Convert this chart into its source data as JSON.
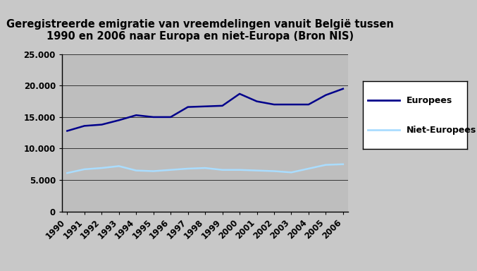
{
  "title": "Geregistreerde emigratie van vreemdelingen vanuit België tussen\n1990 en 2006 naar Europa en niet-Europa (Bron NIS)",
  "years": [
    1990,
    1991,
    1992,
    1993,
    1994,
    1995,
    1996,
    1997,
    1998,
    1999,
    2000,
    2001,
    2002,
    2003,
    2004,
    2005,
    2006
  ],
  "europees": [
    12800,
    13600,
    13800,
    14500,
    15300,
    15000,
    15000,
    16600,
    16700,
    16800,
    18700,
    17500,
    17000,
    17000,
    17000,
    18500,
    19500
  ],
  "niet_europees": [
    6100,
    6700,
    6900,
    7200,
    6500,
    6400,
    6600,
    6800,
    6900,
    6600,
    6600,
    6500,
    6400,
    6200,
    6800,
    7400,
    7500
  ],
  "europees_color": "#00008B",
  "niet_europees_color": "#AADDFF",
  "plot_bg_color": "#BEBEBE",
  "fig_bg_color": "#C8C8C8",
  "ylim": [
    0,
    25000
  ],
  "yticks": [
    0,
    5000,
    10000,
    15000,
    20000,
    25000
  ],
  "ytick_labels": [
    "0",
    "5.000",
    "10.000",
    "15.000",
    "20.000",
    "25.000"
  ],
  "legend_labels": [
    "Europees",
    "Niet-Europees"
  ],
  "title_fontsize": 10.5,
  "tick_fontsize": 8.5,
  "legend_fontsize": 9
}
